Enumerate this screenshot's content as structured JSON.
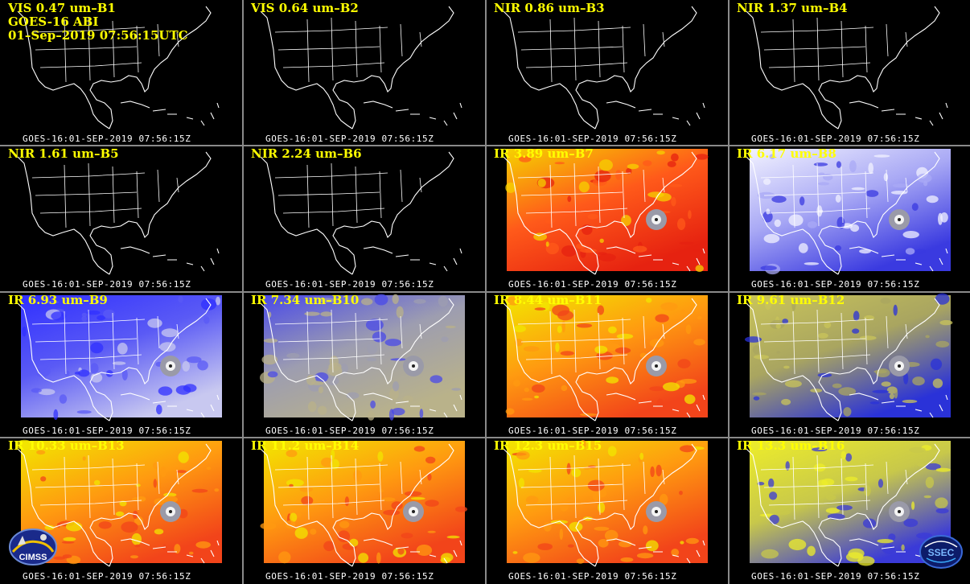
{
  "panels": [
    {
      "title": "VIS 0.47 um–B1",
      "extra": [
        "GOES-16 ABI",
        "01–Sep–2019 07:56:15UTC"
      ],
      "timestamp": "GOES-16:01-SEP-2019 07:56:15Z",
      "palette": "none"
    },
    {
      "title": "VIS 0.64 um–B2",
      "timestamp": "GOES-16:01-SEP-2019 07:56:15Z",
      "palette": "none"
    },
    {
      "title": "NIR 0.86 um–B3",
      "timestamp": "GOES-16:01-SEP-2019 07:56:15Z",
      "palette": "none"
    },
    {
      "title": "NIR 1.37 um–B4",
      "timestamp": "GOES-16:01-SEP-2019 07:56:15Z",
      "palette": "none"
    },
    {
      "title": "NIR 1.61 um–B5",
      "timestamp": "GOES-16:01-SEP-2019 07:56:15Z",
      "palette": "none"
    },
    {
      "title": "NIR 2.24 um–B6",
      "timestamp": "GOES-16:01-SEP-2019 07:56:15Z",
      "palette": "none"
    },
    {
      "title": "IR 3.89 um–B7",
      "timestamp": "GOES-16:01-SEP-2019 07:56:15Z",
      "palette": "red"
    },
    {
      "title": "IR 6.17 um–B8",
      "timestamp": "GOES-16:01-SEP-2019 07:56:15Z",
      "palette": "lavender"
    },
    {
      "title": "IR 6.93 um–B9",
      "timestamp": "GOES-16:01-SEP-2019 07:56:15Z",
      "palette": "blue"
    },
    {
      "title": "IR 7.34 um–B10",
      "timestamp": "GOES-16:01-SEP-2019 07:56:15Z",
      "palette": "bluegray"
    },
    {
      "title": "IR 8.44 um–B11",
      "timestamp": "GOES-16:01-SEP-2019 07:56:15Z",
      "palette": "orange"
    },
    {
      "title": "IR 9.61 um–B12",
      "timestamp": "GOES-16:01-SEP-2019 07:56:15Z",
      "palette": "olive"
    },
    {
      "title": "IR 10.33 um–B13",
      "timestamp": "GOES-16:01-SEP-2019 07:56:15Z",
      "palette": "orange"
    },
    {
      "title": "IR 11.2 um–B14",
      "timestamp": "GOES-16:01-SEP-2019 07:56:15Z",
      "palette": "orange"
    },
    {
      "title": "IR 12.3 um–B15",
      "timestamp": "GOES-16:01-SEP-2019 07:56:15Z",
      "palette": "orange"
    },
    {
      "title": "IR 13.3 um–B16",
      "timestamp": "GOES-16:01-SEP-2019 07:56:15Z",
      "palette": "yellow"
    }
  ],
  "logos": {
    "left": "CIMSS",
    "right": "SSEC"
  },
  "colors": {
    "label": "#ffff00",
    "timestamp": "#ffffff",
    "border": "#8a8a8a",
    "red": [
      "#f5d200",
      "#ff5a1a",
      "#e62210"
    ],
    "lavender": [
      "#f2f2ff",
      "#a9a9f5",
      "#3a3ae0"
    ],
    "blue": [
      "#3030ff",
      "#5a5af5",
      "#c8c8f0"
    ],
    "bluegray": [
      "#4a4ae8",
      "#9d9db0",
      "#b9b28a"
    ],
    "orange": [
      "#f2e600",
      "#ff9a10",
      "#f2441a"
    ],
    "olive": [
      "#c9c45a",
      "#a9a560",
      "#2a32d8"
    ],
    "yellow": [
      "#eded2a",
      "#c8c84a",
      "#3a3ad8"
    ]
  }
}
